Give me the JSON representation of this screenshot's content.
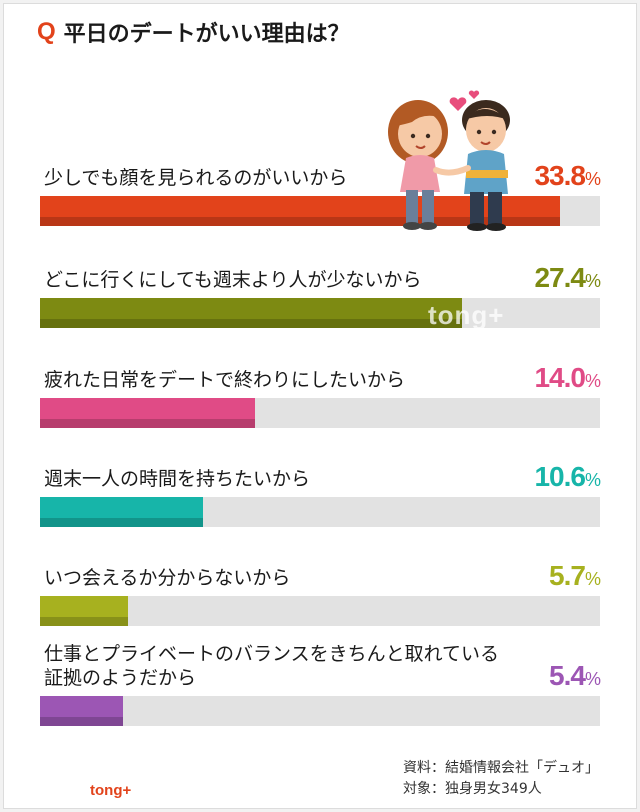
{
  "title": {
    "mark": "Q",
    "text": "平日のデートがいい理由は？"
  },
  "chart_data": {
    "type": "bar",
    "orientation": "horizontal",
    "xlim": [
      0,
      40
    ],
    "grid": false,
    "categories": [
      "少しでも顔を見られるのがいいから",
      "どこに行くにしても週末より人が少ないから",
      "疲れた日常をデートで終わりにしたいから",
      "週末一人の時間を持ちたいから",
      "いつ会えるか分からないから",
      "仕事とプライベートのバランスをきちんと取れている証拠のようだから"
    ],
    "label_lines": [
      [
        "少しでも顔を見られるのがいいから"
      ],
      [
        "どこに行くにしても週末より人が少ないから"
      ],
      [
        "疲れた日常をデートで終わりにしたいから"
      ],
      [
        "週末一人の時間を持ちたいから"
      ],
      [
        "いつ会えるか分からないから"
      ],
      [
        "仕事とプライベートのバランスをきちんと取れている",
        "証拠のようだから"
      ]
    ],
    "values": [
      33.8,
      27.4,
      14.0,
      10.6,
      5.7,
      5.4
    ],
    "value_labels": [
      {
        "big": "33.8",
        "small": "%"
      },
      {
        "big": "27.4",
        "small": "%"
      },
      {
        "big": "14.0",
        "small": "%"
      },
      {
        "big": "10.6",
        "small": "%"
      },
      {
        "big": "5.7",
        "small": "%"
      },
      {
        "big": "5.4",
        "small": "%"
      }
    ],
    "colors": [
      "#e2431b",
      "#7d8a12",
      "#e04b86",
      "#17b5a9",
      "#a7b11f",
      "#9c56b4"
    ]
  },
  "source": {
    "line1": "資料：結婚情報会社「デュオ」",
    "line2": "対象：独身男女349人"
  },
  "logo": {
    "text": "tong+"
  },
  "watermark": {
    "text": "tong+"
  },
  "illustration": {
    "icon": "couple-holding-hands-icon"
  },
  "colors": {
    "track": "#e2e2e2",
    "accent": "#e2431b"
  }
}
